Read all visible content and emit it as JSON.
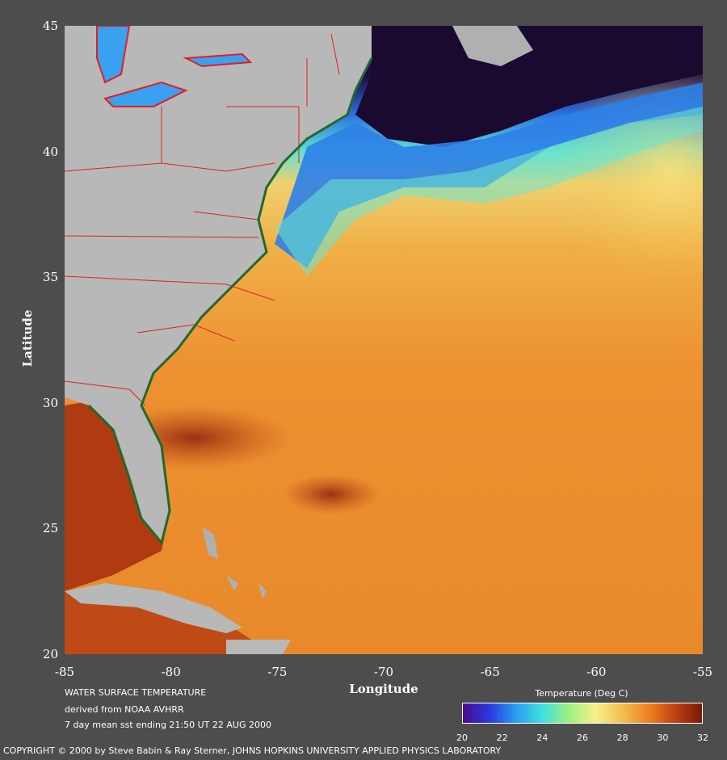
{
  "map": {
    "x_axis_title": "Longitude",
    "y_axis_title": "Latitude",
    "x_ticks": [
      {
        "value": -85,
        "label": "-85"
      },
      {
        "value": -80,
        "label": "-80"
      },
      {
        "value": -75,
        "label": "-75"
      },
      {
        "value": -70,
        "label": "-70"
      },
      {
        "value": -65,
        "label": "-65"
      },
      {
        "value": -60,
        "label": "-60"
      },
      {
        "value": -55,
        "label": "-55"
      }
    ],
    "y_ticks": [
      {
        "value": 45,
        "label": "45"
      },
      {
        "value": 40,
        "label": "40"
      },
      {
        "value": 35,
        "label": "35"
      },
      {
        "value": 30,
        "label": "30"
      },
      {
        "value": 25,
        "label": "25"
      },
      {
        "value": 20,
        "label": "20"
      }
    ],
    "lon_range": [
      -85,
      -55
    ],
    "lat_range": [
      20,
      45
    ]
  },
  "caption": {
    "line1": "WATER SURFACE TEMPERATURE",
    "line2": "derived from NOAA AVHRR",
    "line3": "7 day mean sst ending 21:50 UT 22 AUG 2000"
  },
  "legend": {
    "title": "Temperature (Deg C)",
    "range": [
      20,
      32
    ],
    "labels": [
      {
        "value": 20,
        "label": "20"
      },
      {
        "value": 22,
        "label": "22"
      },
      {
        "value": 24,
        "label": "24"
      },
      {
        "value": 26,
        "label": "26"
      },
      {
        "value": 28,
        "label": "28"
      },
      {
        "value": 30,
        "label": "30"
      },
      {
        "value": 32,
        "label": "32"
      }
    ],
    "colors": [
      "#4a0a8c",
      "#2a38e0",
      "#2a9ef0",
      "#40e0e0",
      "#a0f080",
      "#f8f088",
      "#f0c050",
      "#f08020",
      "#c04010",
      "#7a1808"
    ]
  },
  "copyright": "COPYRIGHT © 2000 by Steve Babin & Ray Sterner, JOHNS HOPKINS UNIVERSITY APPLIED PHYSICS LABORATORY"
}
